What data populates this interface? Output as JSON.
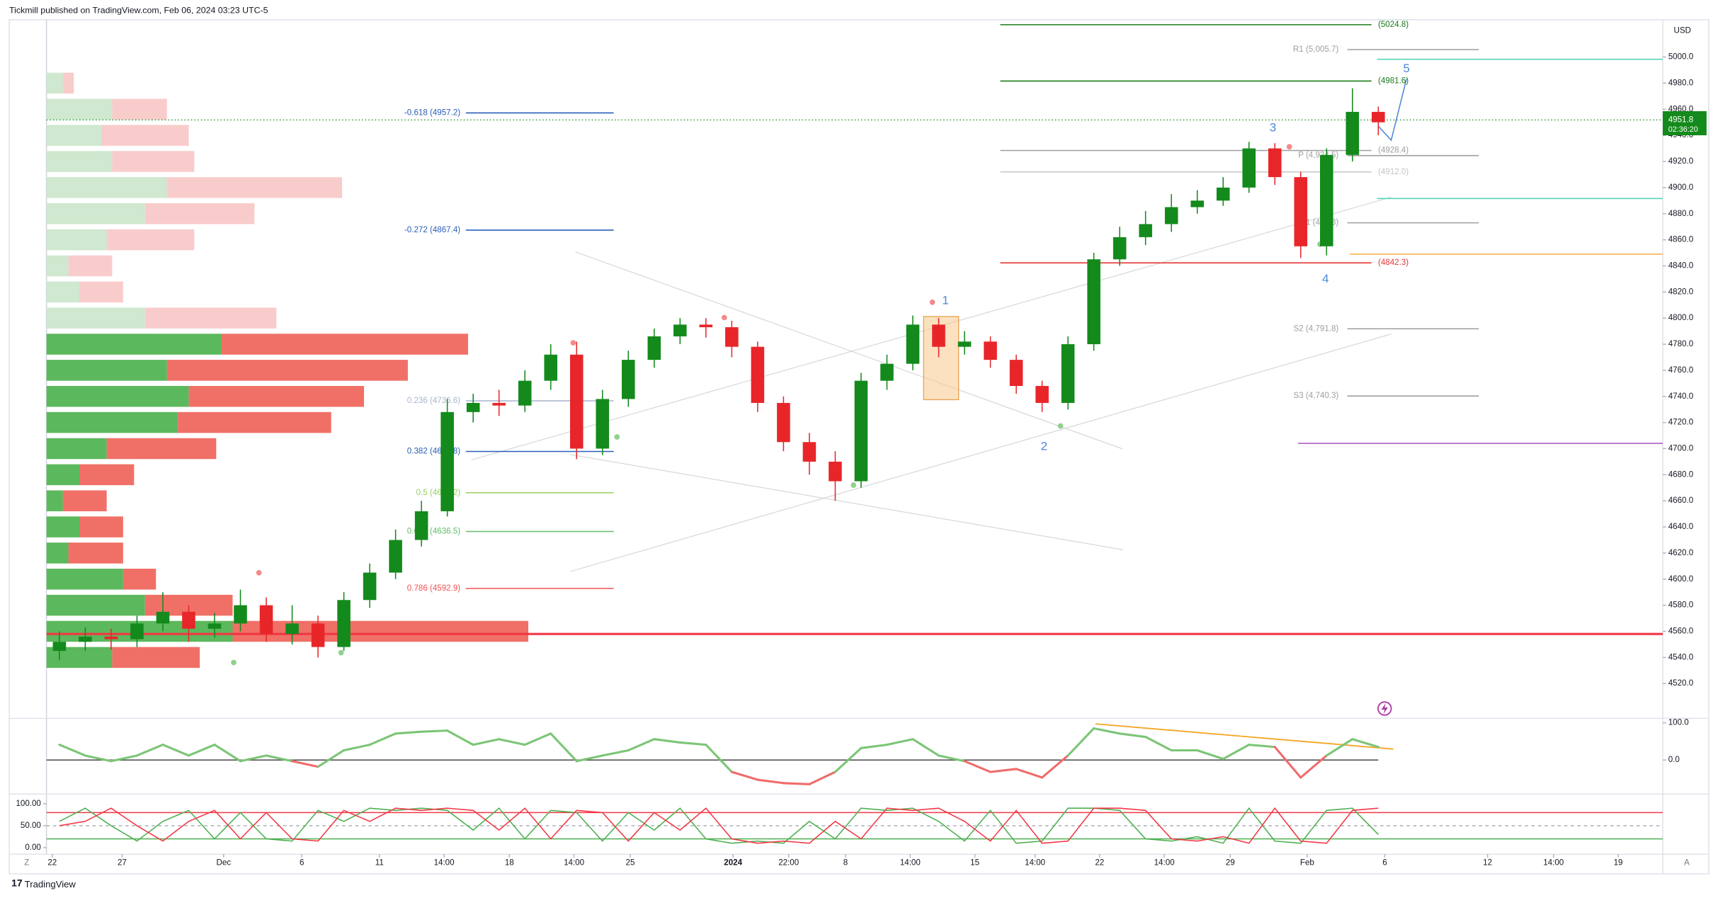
{
  "header": {
    "publisher": "Tickmill published on TradingView.com, Feb 06, 2024 03:23 UTC-5"
  },
  "footer": {
    "logo": "TradingView"
  },
  "axis_buttons": [
    "Z",
    "A"
  ],
  "chart_data": [
    {
      "type": "candlestick",
      "currency": "USD",
      "up_color": "#138a1b",
      "down_color": "#e8262a",
      "xlim": [
        0,
        250
      ],
      "xticks": [
        {
          "value": 0.9,
          "label": "22"
        },
        {
          "value": 11.7,
          "label": "27"
        },
        {
          "value": 27.4,
          "label": "Dec"
        },
        {
          "value": 39.5,
          "label": "6"
        },
        {
          "value": 51.5,
          "label": "11"
        },
        {
          "value": 61.5,
          "label": "14:00"
        },
        {
          "value": 71.6,
          "label": "18"
        },
        {
          "value": 81.6,
          "label": "14:00"
        },
        {
          "value": 90.3,
          "label": "25"
        },
        {
          "value": 106.2,
          "label": "2024"
        },
        {
          "value": 114.8,
          "label": "22:00"
        },
        {
          "value": 123.6,
          "label": "8"
        },
        {
          "value": 133.6,
          "label": "14:00"
        },
        {
          "value": 143.6,
          "label": "15"
        },
        {
          "value": 152.9,
          "label": "14:00"
        },
        {
          "value": 162.9,
          "label": "22"
        },
        {
          "value": 172.9,
          "label": "14:00"
        },
        {
          "value": 183.1,
          "label": "29"
        },
        {
          "value": 195,
          "label": "Feb"
        },
        {
          "value": 207,
          "label": "6"
        },
        {
          "value": 222.9,
          "label": "12"
        },
        {
          "value": 233.1,
          "label": "14:00"
        },
        {
          "value": 243.1,
          "label": "19"
        }
      ],
      "ylim": [
        4493.3,
        5028.6
      ],
      "yticks": [
        {
          "value": 4520,
          "label": "4520.0"
        },
        {
          "value": 4540,
          "label": "4540.0"
        },
        {
          "value": 4560,
          "label": "4560.0"
        },
        {
          "value": 4580,
          "label": "4580.0"
        },
        {
          "value": 4600,
          "label": "4600.0"
        },
        {
          "value": 4620,
          "label": "4620.0"
        },
        {
          "value": 4640,
          "label": "4640.0"
        },
        {
          "value": 4660,
          "label": "4660.0"
        },
        {
          "value": 4680,
          "label": "4680.0"
        },
        {
          "value": 4700,
          "label": "4700.0"
        },
        {
          "value": 4720,
          "label": "4720.0"
        },
        {
          "value": 4740,
          "label": "4740.0"
        },
        {
          "value": 4760,
          "label": "4760.0"
        },
        {
          "value": 4780,
          "label": "4780.0"
        },
        {
          "value": 4800,
          "label": "4800.0"
        },
        {
          "value": 4820,
          "label": "4820.0"
        },
        {
          "value": 4840,
          "label": "4840.0"
        },
        {
          "value": 4860,
          "label": "4860.0"
        },
        {
          "value": 4880,
          "label": "4880.0"
        },
        {
          "value": 4900,
          "label": "4900.0"
        },
        {
          "value": 4920,
          "label": "4920.0"
        },
        {
          "value": 4940,
          "label": "4940.0"
        },
        {
          "value": 4960,
          "label": "4960.0"
        },
        {
          "value": 4980,
          "label": "4980.0"
        },
        {
          "value": 5000,
          "label": "5000.0"
        }
      ],
      "x": [
        2,
        6,
        10,
        14,
        18,
        22,
        26,
        30,
        34,
        38,
        42,
        46,
        50,
        54,
        58,
        62,
        66,
        70,
        74,
        78,
        82,
        86,
        90,
        94,
        98,
        102,
        106,
        110,
        114,
        118,
        122,
        126,
        130,
        134,
        138,
        142,
        146,
        150,
        154,
        158,
        162,
        166,
        170,
        174,
        178,
        182,
        186,
        190,
        194,
        198,
        202,
        206
      ],
      "open": [
        4545,
        4552,
        4556,
        4554,
        4566,
        4575,
        4562,
        4566,
        4580,
        4558,
        4566,
        4548,
        4584,
        4605,
        4630,
        4652,
        4728,
        4735,
        4733,
        4752,
        4772,
        4700,
        4738,
        4768,
        4786,
        4795,
        4793,
        4778,
        4735,
        4705,
        4690,
        4675,
        4752,
        4765,
        4795,
        4778,
        4782,
        4768,
        4748,
        4735,
        4780,
        4845,
        4862,
        4872,
        4885,
        4890,
        4900,
        4930,
        4908,
        4855,
        4925,
        4958
      ],
      "high": [
        4560,
        4563,
        4562,
        4572,
        4590,
        4580,
        4574,
        4592,
        4586,
        4580,
        4572,
        4590,
        4612,
        4638,
        4660,
        4738,
        4742,
        4745,
        4760,
        4780,
        4782,
        4745,
        4775,
        4792,
        4800,
        4800,
        4798,
        4782,
        4740,
        4712,
        4698,
        4758,
        4772,
        4802,
        4800,
        4790,
        4786,
        4772,
        4752,
        4786,
        4850,
        4870,
        4882,
        4895,
        4898,
        4908,
        4935,
        4934,
        4912,
        4930,
        4976,
        4962
      ],
      "low": [
        4538,
        4545,
        4546,
        4548,
        4560,
        4552,
        4555,
        4560,
        4552,
        4550,
        4540,
        4545,
        4578,
        4600,
        4625,
        4648,
        4720,
        4725,
        4728,
        4745,
        4692,
        4695,
        4732,
        4762,
        4780,
        4785,
        4770,
        4728,
        4698,
        4680,
        4660,
        4670,
        4745,
        4760,
        4770,
        4772,
        4762,
        4742,
        4728,
        4730,
        4775,
        4840,
        4856,
        4866,
        4880,
        4886,
        4896,
        4902,
        4846,
        4848,
        4920,
        4940
      ],
      "close": [
        4552,
        4556,
        4554,
        4566,
        4575,
        4562,
        4566,
        4580,
        4558,
        4566,
        4548,
        4584,
        4605,
        4630,
        4652,
        4728,
        4735,
        4733,
        4752,
        4772,
        4700,
        4738,
        4768,
        4786,
        4795,
        4793,
        4778,
        4735,
        4705,
        4690,
        4675,
        4752,
        4765,
        4795,
        4778,
        4782,
        4768,
        4748,
        4735,
        4780,
        4845,
        4862,
        4872,
        4885,
        4890,
        4900,
        4930,
        4908,
        4855,
        4925,
        4958,
        4950
      ],
      "last_price": 4951.8,
      "last_price_color": "#138a1b",
      "countdown": "02:36:20",
      "fib_levels": [
        {
          "label": "-0.618 (4957.2)",
          "value": 4957.2,
          "color": "#2a5fb8"
        },
        {
          "label": "-0.272 (4867.4)",
          "value": 4867.4,
          "color": "#2a5fb8"
        },
        {
          "label": "0.236 (4736.6)",
          "value": 4736.6,
          "color": "#aab4cf"
        },
        {
          "label": "0.382 (4697.8)",
          "value": 4697.8,
          "color": "#2a5fb8"
        },
        {
          "label": "0.5 (4666.2)",
          "value": 4666.2,
          "color": "#9ccc65"
        },
        {
          "label": "0.618 (4636.5)",
          "value": 4636.5,
          "color": "#66bb6a"
        },
        {
          "label": "0.786 (4592.9)",
          "value": 4592.9,
          "color": "#ef5350"
        }
      ],
      "pivots": [
        {
          "label": "R1 (5,005.7)",
          "value": 5005.7,
          "color": "#9e9e9e"
        },
        {
          "label": "P (4,924.5)",
          "value": 4924.5,
          "color": "#9e9e9e"
        },
        {
          "label": "S1 (4,873)",
          "value": 4873,
          "color": "#9e9e9e"
        },
        {
          "label": "S2 (4,791.8)",
          "value": 4791.8,
          "color": "#9e9e9e"
        },
        {
          "label": "S3 (4,740.3)",
          "value": 4740.3,
          "color": "#9e9e9e"
        }
      ],
      "price_levels": [
        {
          "label": "(5024.8)",
          "value": 5024.8,
          "color": "#1b7a1b"
        },
        {
          "label": "(4981.6)",
          "value": 4981.6,
          "color": "#1b7a1b"
        },
        {
          "label": "(4928.4)",
          "value": 4928.4,
          "color": "#9e9e9e"
        },
        {
          "label": "(4912.0)",
          "value": 4912.0,
          "color": "#c4c4c4"
        },
        {
          "label": "(4842.3)",
          "value": 4842.3,
          "color": "#e53935"
        }
      ],
      "lines": [
        {
          "value": 4998.3,
          "color": "#55d6b4"
        },
        {
          "value": 4891.6,
          "color": "#55d6b4"
        },
        {
          "value": 4849,
          "color": "#f5b041"
        },
        {
          "value": 4704,
          "color": "#b05cc4"
        },
        {
          "value": 4558,
          "color": "#f23645"
        }
      ],
      "wave_labels": [
        "1",
        "2",
        "3",
        "4",
        "5"
      ],
      "wave_color": "#4f86d9",
      "volume_profile": {
        "up_color": "#5cb85c",
        "down_color": "#f07067",
        "up_faded_color": "#cfe8cf",
        "down_faded_color": "#f9cccc",
        "rows": [
          {
            "price": 4980,
            "up": 15,
            "down": 10,
            "faded": true
          },
          {
            "price": 4960,
            "up": 60,
            "down": 50,
            "faded": true
          },
          {
            "price": 4940,
            "up": 50,
            "down": 80,
            "faded": true
          },
          {
            "price": 4920,
            "up": 60,
            "down": 75,
            "faded": true
          },
          {
            "price": 4900,
            "up": 110,
            "down": 160,
            "faded": true
          },
          {
            "price": 4880,
            "up": 90,
            "down": 100,
            "faded": true
          },
          {
            "price": 4860,
            "up": 55,
            "down": 80,
            "faded": true
          },
          {
            "price": 4840,
            "up": 20,
            "down": 40,
            "faded": true
          },
          {
            "price": 4820,
            "up": 30,
            "down": 40,
            "faded": true
          },
          {
            "price": 4800,
            "up": 90,
            "down": 120,
            "faded": true
          },
          {
            "price": 4780,
            "up": 160,
            "down": 225,
            "faded": false
          },
          {
            "price": 4760,
            "up": 110,
            "down": 220,
            "faded": false
          },
          {
            "price": 4740,
            "up": 130,
            "down": 160,
            "faded": false
          },
          {
            "price": 4720,
            "up": 120,
            "down": 140,
            "faded": false
          },
          {
            "price": 4700,
            "up": 55,
            "down": 100,
            "faded": false
          },
          {
            "price": 4680,
            "up": 30,
            "down": 50,
            "faded": false
          },
          {
            "price": 4660,
            "up": 15,
            "down": 40,
            "faded": false
          },
          {
            "price": 4640,
            "up": 30,
            "down": 40,
            "faded": false
          },
          {
            "price": 4620,
            "up": 20,
            "down": 50,
            "faded": false
          },
          {
            "price": 4600,
            "up": 70,
            "down": 30,
            "faded": false
          },
          {
            "price": 4580,
            "up": 90,
            "down": 80,
            "faded": false
          },
          {
            "price": 4560,
            "up": 170,
            "down": 270,
            "faded": false
          },
          {
            "price": 4540,
            "up": 60,
            "down": 80,
            "faded": false
          }
        ]
      }
    },
    {
      "type": "line",
      "up_color": "#7cc576",
      "down_color": "#f06b6b",
      "ylim": [
        -88.2,
        108.8
      ],
      "yticks": [
        {
          "value": 0,
          "label": "0.0"
        },
        {
          "value": 100,
          "label": "100.0"
        }
      ],
      "hlines": [
        {
          "value": 0,
          "color": "#555555"
        }
      ],
      "x": [
        2,
        6,
        10,
        14,
        18,
        22,
        26,
        30,
        34,
        38,
        42,
        46,
        50,
        54,
        58,
        62,
        66,
        70,
        74,
        78,
        82,
        86,
        90,
        94,
        98,
        102,
        106,
        110,
        114,
        118,
        122,
        126,
        130,
        134,
        138,
        142,
        146,
        150,
        154,
        158,
        162,
        166,
        170,
        174,
        178,
        182,
        186,
        190,
        194,
        198,
        202,
        206
      ],
      "values": [
        41,
        12,
        -3,
        12,
        41,
        12,
        41,
        -3,
        12,
        -3,
        -18,
        26,
        41,
        71,
        76,
        79,
        41,
        56,
        41,
        71,
        -3,
        12,
        26,
        56,
        47,
        41,
        -32,
        -53,
        -62,
        -65,
        -32,
        32,
        41,
        56,
        12,
        -3,
        -32,
        -24,
        -47,
        12,
        85,
        71,
        62,
        26,
        26,
        3,
        41,
        35,
        -47,
        12,
        56,
        35
      ]
    },
    {
      "type": "line",
      "ylim": [
        -12.5,
        117.5
      ],
      "yticks": [
        {
          "value": 0,
          "label": "0.00"
        },
        {
          "value": 50,
          "label": "50.00"
        },
        {
          "value": 100,
          "label": "100.00"
        }
      ],
      "hlines": [
        {
          "value": 80,
          "color": "#f23645"
        },
        {
          "value": 50,
          "color": "#b2b5be"
        },
        {
          "value": 20,
          "color": "#4caf50"
        }
      ],
      "x": [
        2,
        6,
        10,
        14,
        18,
        22,
        26,
        30,
        34,
        38,
        42,
        46,
        50,
        54,
        58,
        62,
        66,
        70,
        74,
        78,
        82,
        86,
        90,
        94,
        98,
        102,
        106,
        110,
        114,
        118,
        122,
        126,
        130,
        134,
        138,
        142,
        146,
        150,
        154,
        158,
        162,
        166,
        170,
        174,
        178,
        182,
        186,
        190,
        194,
        198,
        202,
        206
      ],
      "series": [
        {
          "color": "#4caf50",
          "values": [
            60,
            90,
            50,
            15,
            60,
            85,
            20,
            80,
            20,
            15,
            85,
            60,
            90,
            85,
            90,
            85,
            40,
            90,
            20,
            85,
            80,
            15,
            80,
            40,
            90,
            20,
            10,
            15,
            10,
            60,
            20,
            90,
            85,
            90,
            60,
            15,
            85,
            10,
            15,
            90,
            90,
            85,
            20,
            15,
            25,
            10,
            90,
            15,
            10,
            85,
            90,
            30
          ]
        },
        {
          "color": "#f23645",
          "values": [
            50,
            60,
            90,
            50,
            15,
            60,
            85,
            20,
            80,
            20,
            15,
            85,
            60,
            90,
            85,
            90,
            85,
            40,
            90,
            20,
            85,
            80,
            15,
            80,
            40,
            90,
            20,
            10,
            15,
            10,
            60,
            20,
            90,
            85,
            90,
            60,
            15,
            85,
            10,
            15,
            90,
            90,
            85,
            20,
            15,
            25,
            10,
            90,
            15,
            10,
            85,
            90
          ]
        }
      ]
    }
  ]
}
